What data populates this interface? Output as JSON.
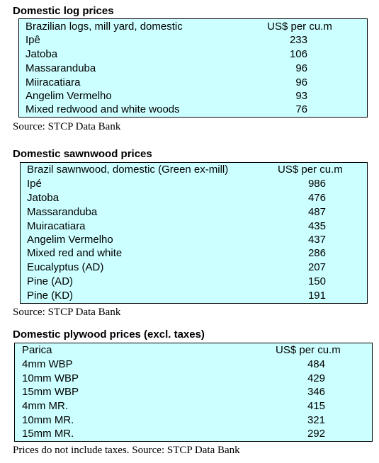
{
  "tables": [
    {
      "title": "Domestic log prices",
      "header": {
        "name": "Brazilian logs, mill yard, domestic",
        "unit": "US$ per cu.m"
      },
      "rows": [
        {
          "name": "Ipê",
          "value": "233"
        },
        {
          "name": "Jatoba",
          "value": "106"
        },
        {
          "name": "Massaranduba",
          "value": "96"
        },
        {
          "name": "Miiracatiara",
          "value": "96"
        },
        {
          "name": "Angelim Vermelho",
          "value": "93"
        },
        {
          "name": "Mixed redwood and white woods",
          "value": "76"
        }
      ],
      "source": "Source: STCP Data Bank"
    },
    {
      "title": "Domestic sawnwood prices",
      "header": {
        "name": "Brazil sawnwood, domestic (Green ex-mill)",
        "unit": "US$ per cu.m"
      },
      "rows": [
        {
          "name": "Ipé",
          "value": "986"
        },
        {
          "name": "Jatoba",
          "value": "476"
        },
        {
          "name": "Massaranduba",
          "value": "487"
        },
        {
          "name": "Muiracatiara",
          "value": "435"
        },
        {
          "name": "Angelim Vermelho",
          "value": "437"
        },
        {
          "name": "Mixed red and white",
          "value": "286"
        },
        {
          "name": "Eucalyptus (AD)",
          "value": "207"
        },
        {
          "name": "Pine (AD)",
          "value": "150"
        },
        {
          "name": "Pine (KD)",
          "value": "191"
        }
      ],
      "source": "Source: STCP Data Bank"
    },
    {
      "title": "Domestic plywood prices (excl. taxes)",
      "header": {
        "name": "Parica",
        "unit": "US$ per cu.m"
      },
      "rows": [
        {
          "name": "4mm WBP",
          "value": "484"
        },
        {
          "name": "10mm WBP",
          "value": "429"
        },
        {
          "name": "15mm WBP",
          "value": "346"
        },
        {
          "name": "4mm MR.",
          "value": "415"
        },
        {
          "name": "10mm MR.",
          "value": "321"
        },
        {
          "name": "15mm MR.",
          "value": "292"
        }
      ],
      "source": "Prices do not include taxes. Source: STCP Data Bank"
    }
  ]
}
